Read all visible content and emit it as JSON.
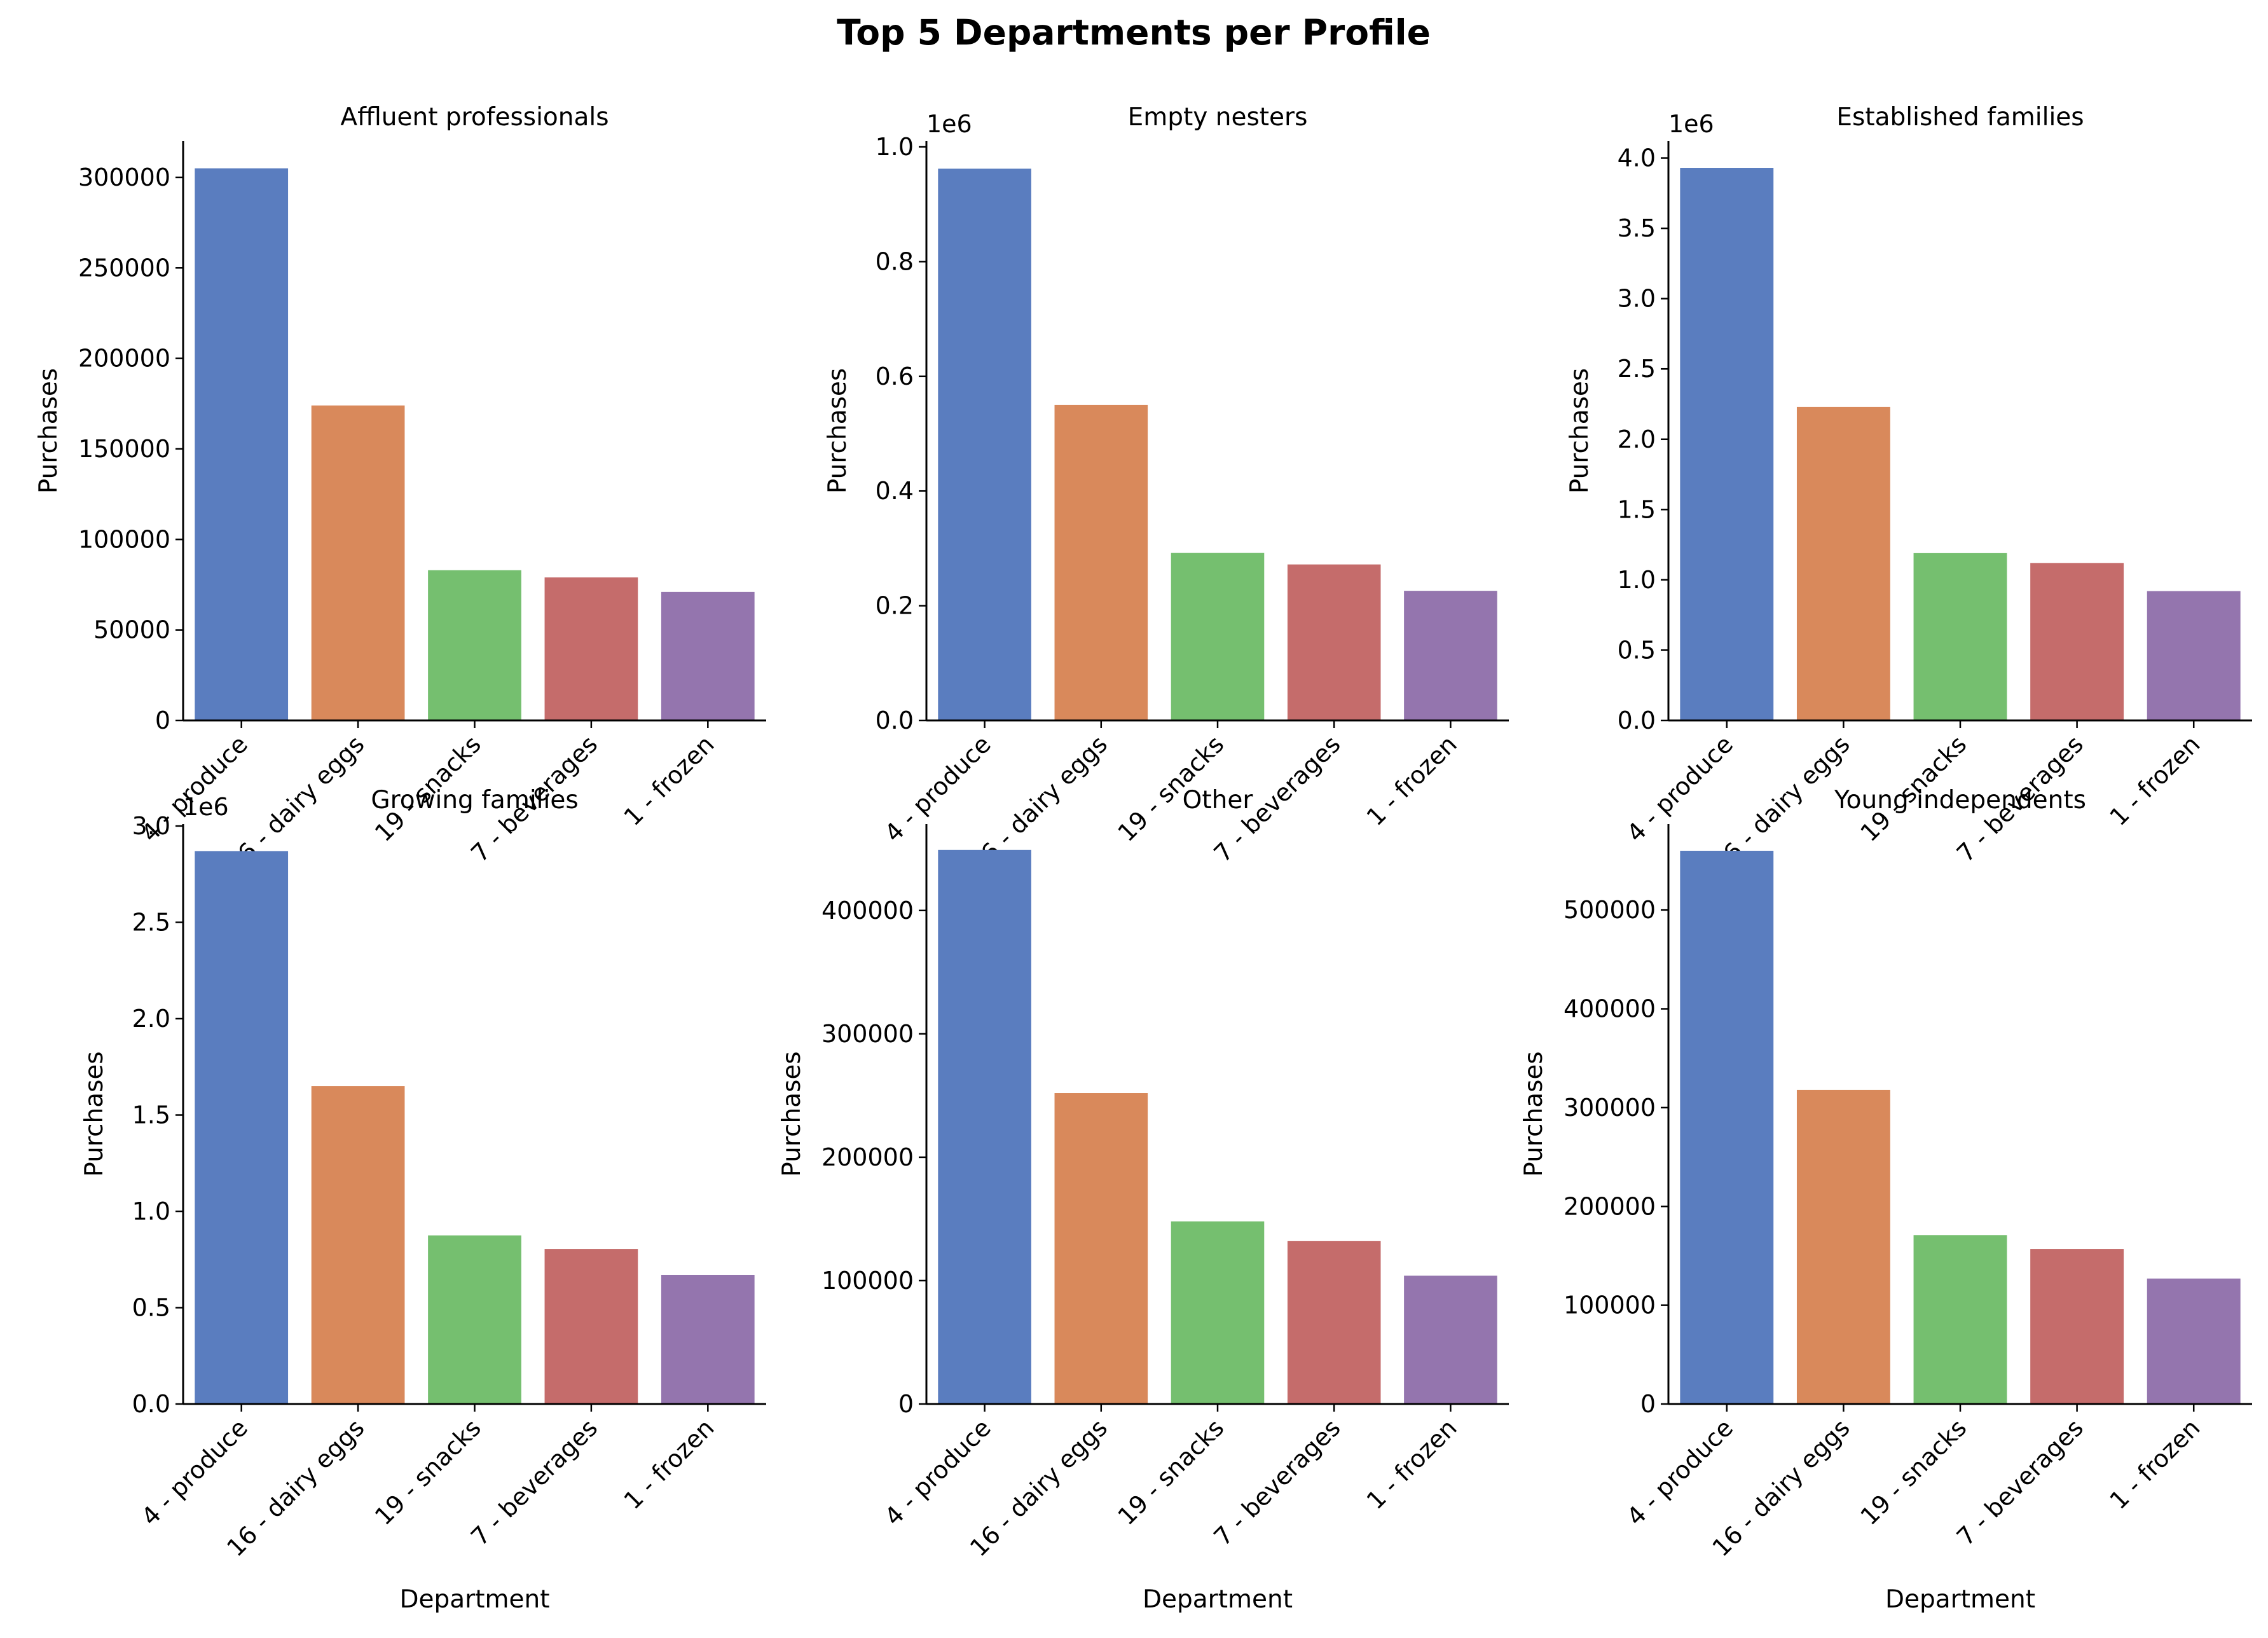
{
  "title": "Top 5 Departments per Profile",
  "chart_data": [
    {
      "type": "bar",
      "title": "Affluent professionals",
      "categories": [
        "4 - produce",
        "16 - dairy eggs",
        "19 - snacks",
        "7 - beverages",
        "1 - frozen"
      ],
      "values": [
        305000,
        174000,
        83000,
        79000,
        71000
      ],
      "xlabel": "",
      "ylabel": "Purchases",
      "ylim": [
        0,
        320000
      ],
      "yticks": [
        0,
        50000,
        100000,
        150000,
        200000,
        250000,
        300000
      ],
      "ytick_labels": [
        "0",
        "50000",
        "100000",
        "150000",
        "200000",
        "250000",
        "300000"
      ],
      "offset_label": "",
      "grid": false
    },
    {
      "type": "bar",
      "title": "Empty nesters",
      "categories": [
        "4 - produce",
        "16 - dairy eggs",
        "19 - snacks",
        "7 - beverages",
        "1 - frozen"
      ],
      "values": [
        962000,
        550000,
        292000,
        272000,
        226000
      ],
      "xlabel": "",
      "ylabel": "Purchases",
      "ylim": [
        0,
        1010000
      ],
      "yticks": [
        0,
        200000,
        400000,
        600000,
        800000,
        1000000
      ],
      "ytick_labels": [
        "0.0",
        "0.2",
        "0.4",
        "0.6",
        "0.8",
        "1.0"
      ],
      "offset_label": "1e6",
      "grid": false
    },
    {
      "type": "bar",
      "title": "Established families",
      "categories": [
        "4 - produce",
        "16 - dairy eggs",
        "19 - snacks",
        "7 - beverages",
        "1 - frozen"
      ],
      "values": [
        3930000,
        2230000,
        1190000,
        1120000,
        920000
      ],
      "xlabel": "",
      "ylabel": "Purchases",
      "ylim": [
        0,
        4120000
      ],
      "yticks": [
        0,
        500000,
        1000000,
        1500000,
        2000000,
        2500000,
        3000000,
        3500000,
        4000000
      ],
      "ytick_labels": [
        "0.0",
        "0.5",
        "1.0",
        "1.5",
        "2.0",
        "2.5",
        "3.0",
        "3.5",
        "4.0"
      ],
      "offset_label": "1e6",
      "grid": false
    },
    {
      "type": "bar",
      "title": "Growing families",
      "categories": [
        "4 - produce",
        "16 - dairy eggs",
        "19 - snacks",
        "7 - beverages",
        "1 - frozen"
      ],
      "values": [
        2870000,
        1650000,
        875000,
        805000,
        670000
      ],
      "xlabel": "Department",
      "ylabel": "Purchases",
      "ylim": [
        0,
        3010000
      ],
      "yticks": [
        0,
        500000,
        1000000,
        1500000,
        2000000,
        2500000,
        3000000
      ],
      "ytick_labels": [
        "0.0",
        "0.5",
        "1.0",
        "1.5",
        "2.0",
        "2.5",
        "3.0"
      ],
      "offset_label": "1e6",
      "grid": false
    },
    {
      "type": "bar",
      "title": "Other",
      "categories": [
        "4 - produce",
        "16 - dairy eggs",
        "19 - snacks",
        "7 - beverages",
        "1 - frozen"
      ],
      "values": [
        449000,
        252000,
        148000,
        132000,
        104000
      ],
      "xlabel": "Department",
      "ylabel": "Purchases",
      "ylim": [
        0,
        470000
      ],
      "yticks": [
        0,
        100000,
        200000,
        300000,
        400000
      ],
      "ytick_labels": [
        "0",
        "100000",
        "200000",
        "300000",
        "400000"
      ],
      "offset_label": "",
      "grid": false
    },
    {
      "type": "bar",
      "title": "Young independents",
      "categories": [
        "4 - produce",
        "16 - dairy eggs",
        "19 - snacks",
        "7 - beverages",
        "1 - frozen"
      ],
      "values": [
        560000,
        318000,
        171000,
        157000,
        127000
      ],
      "xlabel": "Department",
      "ylabel": "Purchases",
      "ylim": [
        0,
        587000
      ],
      "yticks": [
        0,
        100000,
        200000,
        300000,
        400000,
        500000
      ],
      "ytick_labels": [
        "0",
        "100000",
        "200000",
        "300000",
        "400000",
        "500000"
      ],
      "offset_label": "",
      "grid": false
    }
  ],
  "colors": {
    "bars": [
      "#5a7dbf",
      "#d9895b",
      "#75bf6f",
      "#c56c6b",
      "#9475ae"
    ],
    "axis": "#000000",
    "background": "#ffffff"
  }
}
